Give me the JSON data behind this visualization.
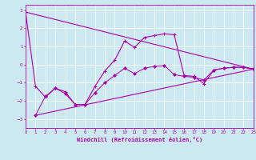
{
  "xlabel": "Windchill (Refroidissement éolien,°C)",
  "background_color": "#cce8f0",
  "grid_color": "#ffffff",
  "line_color": "#aa00aa",
  "xlim": [
    0,
    23
  ],
  "ylim": [
    -3.5,
    3.3
  ],
  "xticks": [
    0,
    1,
    2,
    3,
    4,
    5,
    6,
    7,
    8,
    9,
    10,
    11,
    12,
    13,
    14,
    15,
    16,
    17,
    18,
    19,
    20,
    21,
    22,
    23
  ],
  "yticks": [
    -3,
    -2,
    -1,
    0,
    1,
    2,
    3
  ],
  "main_x": [
    0,
    1,
    2,
    3,
    4,
    5,
    6,
    7,
    8,
    9,
    10,
    11,
    12,
    13,
    14,
    15,
    16,
    17,
    18,
    19,
    20,
    21,
    22,
    23
  ],
  "main_y": [
    2.9,
    -1.2,
    -1.8,
    -1.3,
    -1.5,
    -2.2,
    -2.2,
    -1.2,
    -0.35,
    0.25,
    1.3,
    0.95,
    1.5,
    1.6,
    1.7,
    1.65,
    -0.6,
    -0.65,
    -1.05,
    -0.3,
    -0.2,
    -0.15,
    -0.15,
    -0.25
  ],
  "trend1_x": [
    0,
    23
  ],
  "trend1_y": [
    2.9,
    -0.25
  ],
  "trend2_x": [
    1,
    23
  ],
  "trend2_y": [
    -2.8,
    -0.25
  ],
  "lower_x": [
    1,
    2,
    3,
    4,
    5,
    6,
    7,
    8,
    9,
    10,
    11,
    12,
    13,
    14,
    15,
    16,
    17,
    18,
    19,
    20,
    21,
    22,
    23
  ],
  "lower_y": [
    -2.8,
    -1.75,
    -1.3,
    -1.6,
    -2.2,
    -2.2,
    -1.55,
    -1.0,
    -0.6,
    -0.2,
    -0.5,
    -0.2,
    -0.1,
    -0.05,
    -0.55,
    -0.65,
    -0.7,
    -0.85,
    -0.3,
    -0.2,
    -0.15,
    -0.15,
    -0.25
  ]
}
